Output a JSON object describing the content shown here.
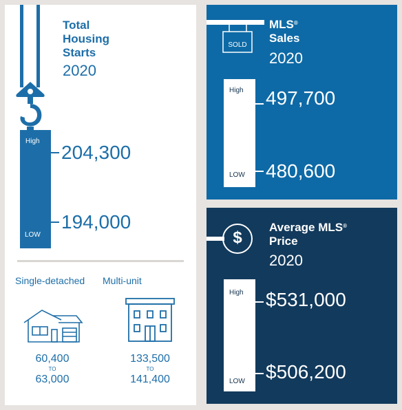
{
  "housing_starts": {
    "title_line1": "Total",
    "title_line2": "Housing",
    "title_line3": "Starts",
    "year": "2020",
    "high_label": "High",
    "low_label": "LOW",
    "high_value": "204,300",
    "low_value": "194,000"
  },
  "breakdown": {
    "single_detached": {
      "label": "Single-detached",
      "low": "60,400",
      "to": "TO",
      "high": "63,000"
    },
    "multi_unit": {
      "label": "Multi-unit",
      "low": "133,500",
      "to": "TO",
      "high": "141,400"
    }
  },
  "mls_sales": {
    "title_line1": "MLS",
    "title_line2": "Sales",
    "year": "2020",
    "sign_text": "SOLD",
    "high_label": "High",
    "low_label": "LOW",
    "high_value": "497,700",
    "low_value": "480,600"
  },
  "mls_price": {
    "title_line1": "Average MLS",
    "title_line2": "Price",
    "year": "2020",
    "dollar_symbol": "$",
    "high_label": "High",
    "low_label": "LOW",
    "high_value": "$531,000",
    "low_value": "$506,200"
  },
  "colors": {
    "accent_blue": "#1d6ea8",
    "sales_panel": "#0e6aa6",
    "price_panel": "#123a5c",
    "background": "#e6e3e0"
  },
  "icons": [
    "crane-hook-icon",
    "house-icon",
    "apartment-building-icon",
    "sold-sign-icon",
    "dollar-sign-icon"
  ]
}
